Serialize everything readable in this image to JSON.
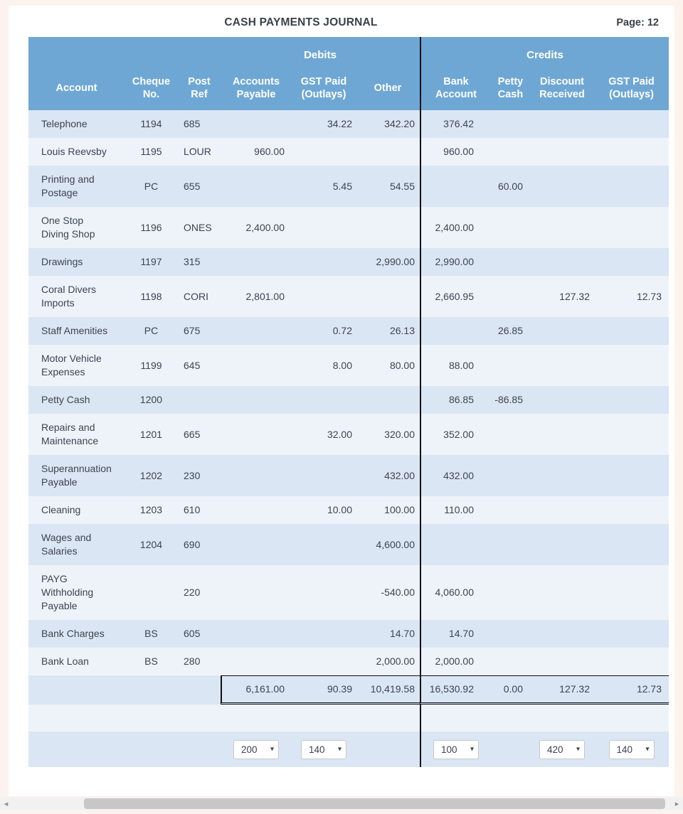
{
  "page": {
    "title": "CASH PAYMENTS JOURNAL",
    "page_label": "Page: 12"
  },
  "table": {
    "groups": {
      "debits": "Debits",
      "credits": "Credits"
    },
    "columns": {
      "account": "Account",
      "cheque_no": "Cheque\nNo.",
      "post_ref": "Post\nRef",
      "accounts_payable": "Accounts\nPayable",
      "gst_paid_debits": "GST Paid\n(Outlays)",
      "other": "Other",
      "bank_account": "Bank\nAccount",
      "petty_cash": "Petty\nCash",
      "discount_received": "Discount\nReceived",
      "gst_paid_credits": "GST Paid\n(Outlays)"
    },
    "rows": [
      {
        "account": "Telephone",
        "cheque_no": "1194",
        "post_ref": "685",
        "accounts_payable": "",
        "gst_paid_debits": "34.22",
        "other": "342.20",
        "bank_account": "376.42",
        "petty_cash": "",
        "discount_received": "",
        "gst_paid_credits": ""
      },
      {
        "account": "Louis Reevsby",
        "cheque_no": "1195",
        "post_ref": "LOUR",
        "accounts_payable": "960.00",
        "gst_paid_debits": "",
        "other": "",
        "bank_account": "960.00",
        "petty_cash": "",
        "discount_received": "",
        "gst_paid_credits": ""
      },
      {
        "account": "Printing and\nPostage",
        "cheque_no": "PC",
        "post_ref": "655",
        "accounts_payable": "",
        "gst_paid_debits": "5.45",
        "other": "54.55",
        "bank_account": "",
        "petty_cash": "60.00",
        "discount_received": "",
        "gst_paid_credits": ""
      },
      {
        "account": "One Stop\nDiving Shop",
        "cheque_no": "1196",
        "post_ref": "ONES",
        "accounts_payable": "2,400.00",
        "gst_paid_debits": "",
        "other": "",
        "bank_account": "2,400.00",
        "petty_cash": "",
        "discount_received": "",
        "gst_paid_credits": ""
      },
      {
        "account": "Drawings",
        "cheque_no": "1197",
        "post_ref": "315",
        "accounts_payable": "",
        "gst_paid_debits": "",
        "other": "2,990.00",
        "bank_account": "2,990.00",
        "petty_cash": "",
        "discount_received": "",
        "gst_paid_credits": ""
      },
      {
        "account": "Coral Divers\nImports",
        "cheque_no": "1198",
        "post_ref": "CORI",
        "accounts_payable": "2,801.00",
        "gst_paid_debits": "",
        "other": "",
        "bank_account": "2,660.95",
        "petty_cash": "",
        "discount_received": "127.32",
        "gst_paid_credits": "12.73"
      },
      {
        "account": "Staff Amenities",
        "cheque_no": "PC",
        "post_ref": "675",
        "accounts_payable": "",
        "gst_paid_debits": "0.72",
        "other": "26.13",
        "bank_account": "",
        "petty_cash": "26.85",
        "discount_received": "",
        "gst_paid_credits": ""
      },
      {
        "account": "Motor Vehicle\nExpenses",
        "cheque_no": "1199",
        "post_ref": "645",
        "accounts_payable": "",
        "gst_paid_debits": "8.00",
        "other": "80.00",
        "bank_account": "88.00",
        "petty_cash": "",
        "discount_received": "",
        "gst_paid_credits": ""
      },
      {
        "account": "Petty Cash",
        "cheque_no": "1200",
        "post_ref": "",
        "accounts_payable": "",
        "gst_paid_debits": "",
        "other": "",
        "bank_account": "86.85",
        "petty_cash": "-86.85",
        "discount_received": "",
        "gst_paid_credits": ""
      },
      {
        "account": "Repairs and\nMaintenance",
        "cheque_no": "1201",
        "post_ref": "665",
        "accounts_payable": "",
        "gst_paid_debits": "32.00",
        "other": "320.00",
        "bank_account": "352.00",
        "petty_cash": "",
        "discount_received": "",
        "gst_paid_credits": ""
      },
      {
        "account": "Superannuation\nPayable",
        "cheque_no": "1202",
        "post_ref": "230",
        "accounts_payable": "",
        "gst_paid_debits": "",
        "other": "432.00",
        "bank_account": "432.00",
        "petty_cash": "",
        "discount_received": "",
        "gst_paid_credits": ""
      },
      {
        "account": "Cleaning",
        "cheque_no": "1203",
        "post_ref": "610",
        "accounts_payable": "",
        "gst_paid_debits": "10.00",
        "other": "100.00",
        "bank_account": "110.00",
        "petty_cash": "",
        "discount_received": "",
        "gst_paid_credits": ""
      },
      {
        "account": "Wages and\nSalaries",
        "cheque_no": "1204",
        "post_ref": "690",
        "accounts_payable": "",
        "gst_paid_debits": "",
        "other": "4,600.00",
        "bank_account": "",
        "petty_cash": "",
        "discount_received": "",
        "gst_paid_credits": ""
      },
      {
        "account": "PAYG\nWithholding\nPayable",
        "cheque_no": "",
        "post_ref": "220",
        "accounts_payable": "",
        "gst_paid_debits": "",
        "other": "-540.00",
        "bank_account": "4,060.00",
        "petty_cash": "",
        "discount_received": "",
        "gst_paid_credits": ""
      },
      {
        "account": "Bank Charges",
        "cheque_no": "BS",
        "post_ref": "605",
        "accounts_payable": "",
        "gst_paid_debits": "",
        "other": "14.70",
        "bank_account": "14.70",
        "petty_cash": "",
        "discount_received": "",
        "gst_paid_credits": ""
      },
      {
        "account": "Bank Loan",
        "cheque_no": "BS",
        "post_ref": "280",
        "accounts_payable": "",
        "gst_paid_debits": "",
        "other": "2,000.00",
        "bank_account": "2,000.00",
        "petty_cash": "",
        "discount_received": "",
        "gst_paid_credits": ""
      }
    ],
    "totals": {
      "accounts_payable": "6,161.00",
      "gst_paid_debits": "90.39",
      "other": "10,419.58",
      "bank_account": "16,530.92",
      "petty_cash": "0.00",
      "discount_received": "127.32",
      "gst_paid_credits": "12.73"
    }
  },
  "footer_selects": [
    {
      "column": "accounts_payable",
      "value": "200"
    },
    {
      "column": "gst_paid_debits",
      "value": "140"
    },
    {
      "column": "bank_account",
      "value": "100"
    },
    {
      "column": "discount_received",
      "value": "420"
    },
    {
      "column": "gst_paid_credits",
      "value": "140"
    }
  ],
  "scrollbar": {
    "left_arrow": "◂",
    "right_arrow": "▸"
  },
  "colors": {
    "header_blue": "#6fa7d4",
    "stripe_dark": "#dbe6f4",
    "stripe_light": "#eef3fa",
    "divider_black": "#0e1116",
    "text_dark": "#3d4350",
    "page_bg": "#fcf2ee",
    "card_bg": "#ffffff",
    "scroll_track": "#f1f1f1",
    "scroll_thumb": "#c7c7c7"
  }
}
